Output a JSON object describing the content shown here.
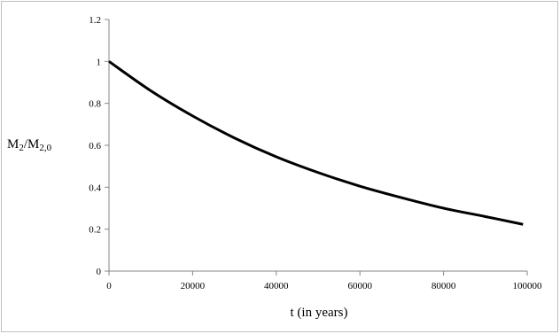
{
  "chart_data": {
    "type": "line",
    "title": "",
    "xlabel": "t (in years)",
    "ylabel": {
      "main": "M",
      "sub1": "2",
      "slash": "/M",
      "sub2": "2,0"
    },
    "xlim": [
      0,
      100000
    ],
    "ylim": [
      0,
      1.2
    ],
    "x_ticks": [
      "0",
      "20000",
      "40000",
      "60000",
      "80000",
      "100000"
    ],
    "y_ticks": [
      "0",
      "0.2",
      "0.4",
      "0.6",
      "0.8",
      "1",
      "1.2"
    ],
    "grid": false,
    "legend": "none",
    "line_color": "#000000",
    "series": [
      {
        "x": [
          0,
          10000,
          20000,
          30000,
          40000,
          50000,
          60000,
          70000,
          80000,
          90000,
          99000
        ],
        "values": [
          1.0,
          0.86,
          0.74,
          0.635,
          0.545,
          0.47,
          0.405,
          0.35,
          0.3,
          0.26,
          0.223
        ]
      }
    ]
  }
}
